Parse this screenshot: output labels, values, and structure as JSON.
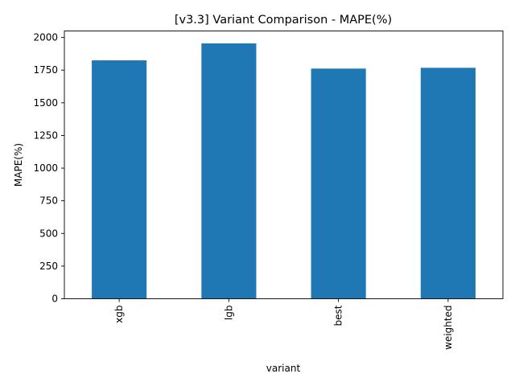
{
  "chart_data": {
    "type": "bar",
    "title": "[v3.3] Variant Comparison - MAPE(%)",
    "xlabel": "variant",
    "ylabel": "MAPE(%)",
    "categories": [
      "xgb",
      "lgb",
      "best",
      "weighted"
    ],
    "values": [
      1825,
      1955,
      1762,
      1768
    ],
    "ylim": [
      0,
      2050
    ],
    "yticks": [
      0,
      250,
      500,
      750,
      1000,
      1250,
      1500,
      1750,
      2000
    ],
    "ytick_labels": [
      "0",
      "250",
      "500",
      "750",
      "1000",
      "1250",
      "1500",
      "1750",
      "2000"
    ],
    "bar_color": "#1f77b4",
    "grid": false,
    "legend": "none"
  }
}
